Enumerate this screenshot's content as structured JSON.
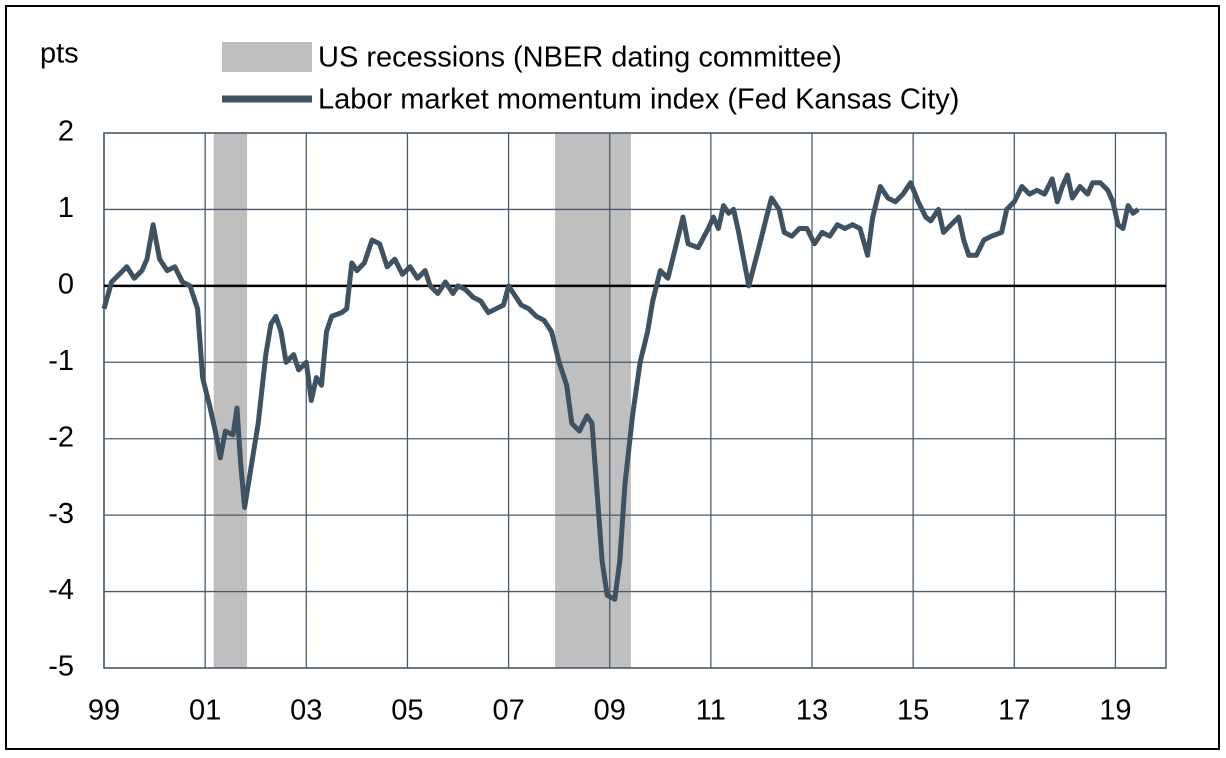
{
  "chart_data": {
    "type": "line",
    "y_label": "pts",
    "shading": {
      "name": "US recessions (NBER dating committee)",
      "color": "#bfbfbf",
      "spans": [
        [
          2001.17,
          2001.83
        ],
        [
          2007.92,
          2009.42
        ]
      ]
    },
    "x": [
      1999.0,
      1999.15,
      1999.3,
      1999.45,
      1999.6,
      1999.75,
      1999.85,
      1999.97,
      2000.1,
      2000.25,
      2000.4,
      2000.55,
      2000.7,
      2000.85,
      2000.95,
      2001.1,
      2001.2,
      2001.3,
      2001.4,
      2001.55,
      2001.63,
      2001.7,
      2001.78,
      2001.95,
      2002.05,
      2002.2,
      2002.3,
      2002.4,
      2002.5,
      2002.6,
      2002.75,
      2002.85,
      2003.0,
      2003.1,
      2003.2,
      2003.3,
      2003.4,
      2003.5,
      2003.7,
      2003.8,
      2003.9,
      2004.0,
      2004.15,
      2004.3,
      2004.45,
      2004.6,
      2004.75,
      2004.9,
      2005.05,
      2005.2,
      2005.35,
      2005.45,
      2005.6,
      2005.75,
      2005.9,
      2006.0,
      2006.15,
      2006.3,
      2006.45,
      2006.6,
      2006.75,
      2006.9,
      2007.0,
      2007.1,
      2007.25,
      2007.4,
      2007.55,
      2007.7,
      2007.85,
      2008.0,
      2008.15,
      2008.25,
      2008.4,
      2008.55,
      2008.65,
      2008.75,
      2008.85,
      2008.95,
      2009.1,
      2009.2,
      2009.3,
      2009.45,
      2009.6,
      2009.75,
      2009.85,
      2010.0,
      2010.15,
      2010.3,
      2010.45,
      2010.55,
      2010.75,
      2010.95,
      2011.05,
      2011.15,
      2011.25,
      2011.35,
      2011.45,
      2011.55,
      2011.65,
      2011.75,
      2011.95,
      2012.1,
      2012.2,
      2012.35,
      2012.45,
      2012.6,
      2012.75,
      2012.9,
      2013.05,
      2013.2,
      2013.35,
      2013.5,
      2013.65,
      2013.8,
      2013.95,
      2014.1,
      2014.2,
      2014.35,
      2014.5,
      2014.65,
      2014.8,
      2014.95,
      2015.1,
      2015.25,
      2015.35,
      2015.5,
      2015.6,
      2015.75,
      2015.9,
      2016.0,
      2016.1,
      2016.25,
      2016.4,
      2016.55,
      2016.75,
      2016.85,
      2017.0,
      2017.15,
      2017.3,
      2017.45,
      2017.6,
      2017.75,
      2017.85,
      2017.95,
      2018.05,
      2018.15,
      2018.3,
      2018.45,
      2018.55,
      2018.7,
      2018.85,
      2018.95,
      2019.05,
      2019.15,
      2019.25,
      2019.35,
      2019.45
    ],
    "series": [
      {
        "name": "Labor market momentum index (Fed Kansas City)",
        "color": "#3f5262",
        "values": [
          -0.3,
          0.05,
          0.15,
          0.25,
          0.1,
          0.2,
          0.35,
          0.8,
          0.35,
          0.2,
          0.25,
          0.05,
          0.0,
          -0.3,
          -1.2,
          -1.6,
          -1.9,
          -2.25,
          -1.9,
          -1.95,
          -1.6,
          -2.3,
          -2.9,
          -2.2,
          -1.8,
          -0.9,
          -0.5,
          -0.4,
          -0.6,
          -1.0,
          -0.9,
          -1.1,
          -1.0,
          -1.5,
          -1.2,
          -1.3,
          -0.6,
          -0.4,
          -0.35,
          -0.3,
          0.3,
          0.2,
          0.3,
          0.6,
          0.55,
          0.25,
          0.35,
          0.15,
          0.25,
          0.1,
          0.2,
          0.0,
          -0.1,
          0.05,
          -0.1,
          0.0,
          -0.05,
          -0.15,
          -0.2,
          -0.35,
          -0.3,
          -0.25,
          0.0,
          -0.1,
          -0.25,
          -0.3,
          -0.4,
          -0.45,
          -0.6,
          -1.0,
          -1.3,
          -1.8,
          -1.9,
          -1.7,
          -1.8,
          -2.7,
          -3.6,
          -4.05,
          -4.1,
          -3.6,
          -2.6,
          -1.7,
          -1.0,
          -0.6,
          -0.2,
          0.2,
          0.1,
          0.5,
          0.9,
          0.55,
          0.5,
          0.75,
          0.9,
          0.75,
          1.05,
          0.95,
          1.0,
          0.7,
          0.35,
          0.0,
          0.5,
          0.9,
          1.15,
          1.0,
          0.7,
          0.65,
          0.75,
          0.75,
          0.55,
          0.7,
          0.65,
          0.8,
          0.75,
          0.8,
          0.75,
          0.4,
          0.9,
          1.3,
          1.15,
          1.1,
          1.2,
          1.35,
          1.1,
          0.9,
          0.85,
          1.0,
          0.7,
          0.8,
          0.9,
          0.6,
          0.4,
          0.4,
          0.6,
          0.65,
          0.7,
          1.0,
          1.1,
          1.3,
          1.2,
          1.25,
          1.2,
          1.4,
          1.1,
          1.3,
          1.45,
          1.15,
          1.3,
          1.2,
          1.35,
          1.35,
          1.25,
          1.1,
          0.8,
          0.75,
          1.05,
          0.95,
          1.0
        ]
      }
    ],
    "xlim": [
      1999,
      2020
    ],
    "xticks": [
      {
        "value": 1999,
        "label": "99"
      },
      {
        "value": 2001,
        "label": "01"
      },
      {
        "value": 2003,
        "label": "03"
      },
      {
        "value": 2005,
        "label": "05"
      },
      {
        "value": 2007,
        "label": "07"
      },
      {
        "value": 2009,
        "label": "09"
      },
      {
        "value": 2011,
        "label": "11"
      },
      {
        "value": 2013,
        "label": "13"
      },
      {
        "value": 2015,
        "label": "15"
      },
      {
        "value": 2017,
        "label": "17"
      },
      {
        "value": 2019,
        "label": "19"
      }
    ],
    "ylim": [
      -5,
      2
    ],
    "yticks": [
      2,
      1,
      0,
      -1,
      -2,
      -3,
      -4,
      -5
    ],
    "grid": true
  }
}
